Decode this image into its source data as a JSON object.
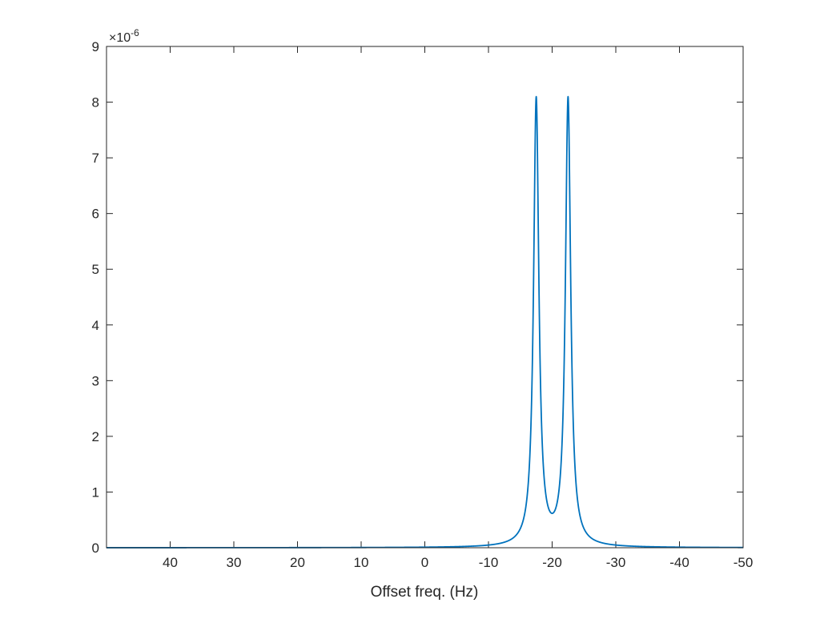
{
  "chart_data": {
    "type": "line",
    "title": "",
    "xlabel": "Offset freq. (Hz)",
    "ylabel": "",
    "x_reversed": true,
    "xlim": [
      50,
      -50
    ],
    "ylim": [
      0,
      9e-06
    ],
    "y_scale_factor_label": "×10",
    "y_scale_exponent_label": "-6",
    "y_scale_exponent": -6,
    "x_ticks": [
      40,
      30,
      20,
      10,
      0,
      -10,
      -20,
      -30,
      -40,
      -50
    ],
    "x_tick_labels": [
      "40",
      "30",
      "20",
      "10",
      "0",
      "-10",
      "-20",
      "-30",
      "-40",
      "-50"
    ],
    "y_ticks": [
      0,
      1,
      2,
      3,
      4,
      5,
      6,
      7,
      8,
      9
    ],
    "y_tick_labels": [
      "0",
      "1",
      "2",
      "3",
      "4",
      "5",
      "6",
      "7",
      "8",
      "9"
    ],
    "grid": false,
    "box": true,
    "legend": "none",
    "line_color": "#0072BD",
    "axis_color": "#262626",
    "series": [
      {
        "peaks": [
          {
            "center": -17.5,
            "amplitude": 8.02e-06,
            "hwhm": 0.5
          },
          {
            "center": -22.5,
            "amplitude": 8.02e-06,
            "hwhm": 0.5
          }
        ],
        "minimum_between_peaks": {
          "x": -20,
          "y": 6.2e-07
        }
      }
    ]
  }
}
